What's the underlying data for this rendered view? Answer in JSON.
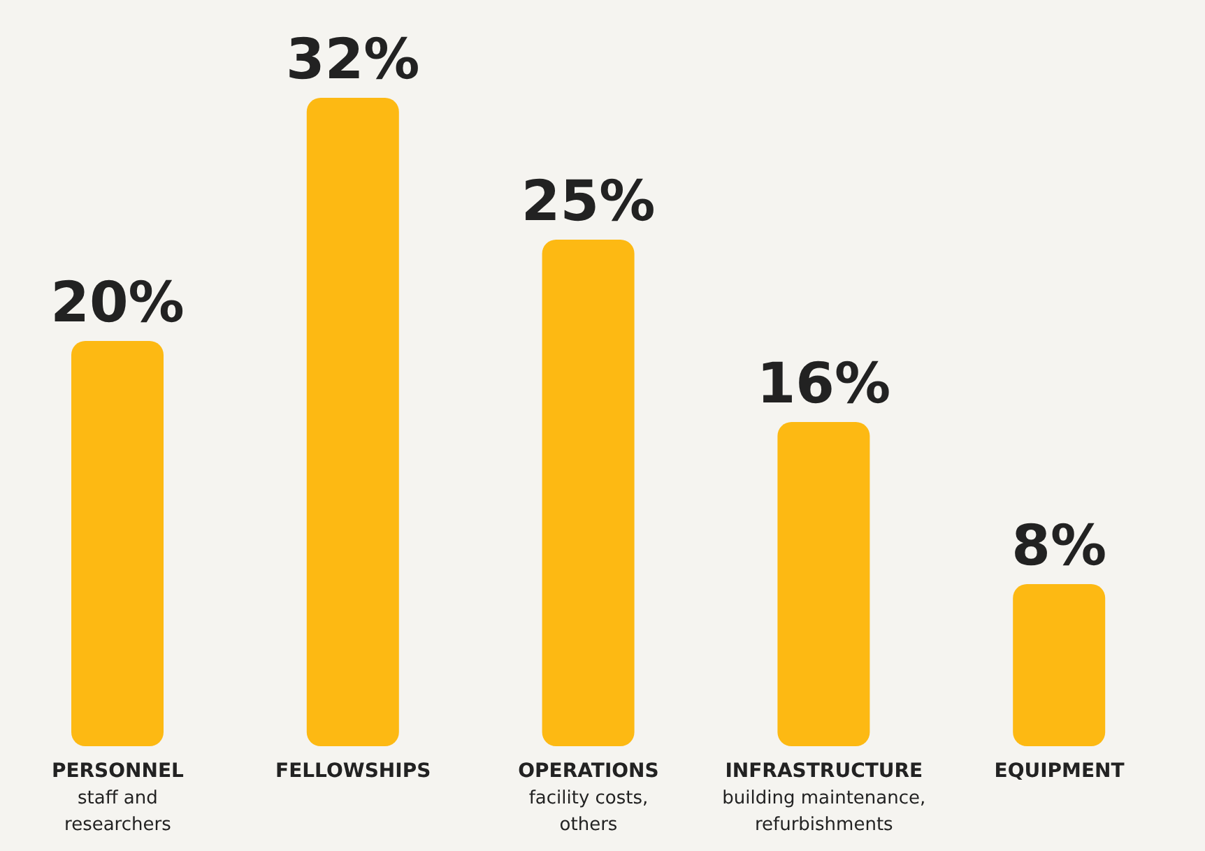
{
  "chart_data": {
    "type": "bar",
    "categories": [
      "PERSONNEL\nstaff and\nresearchers",
      "FELLOWSHIPS",
      "OPERATIONS\nfacility costs,\nothers",
      "INFRASTRUCTURE\nbuilding maintenance,\nrefurbishments",
      "EQUIPMENT"
    ],
    "values": [
      20,
      32,
      25,
      16,
      8
    ],
    "color": "#fdb913",
    "value_labels": [
      "20%",
      "32%",
      "25%",
      "16%",
      "8%"
    ]
  }
}
